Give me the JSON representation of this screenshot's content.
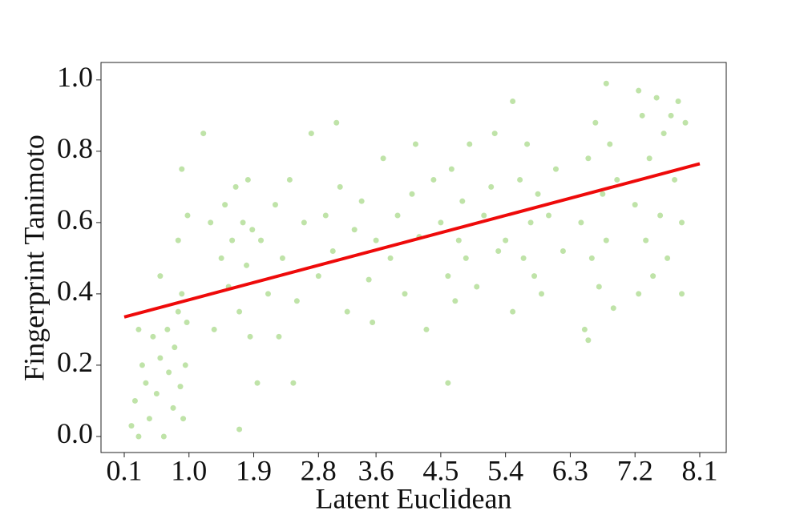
{
  "chart_data": {
    "type": "scatter",
    "x_label": "Latent Euclidean",
    "y_label": "Fingerprint Tanimoto",
    "xlim": [
      -0.223,
      8.468
    ],
    "ylim": [
      -0.045,
      1.049
    ],
    "xticks": [
      0.1,
      {
        "value": 1,
        "label": "1.0"
      },
      1.9,
      2.8,
      3.6,
      4.5,
      5.4,
      6.3,
      7.2,
      8.1
    ],
    "yticks": [
      {
        "value": 0,
        "label": "0.0"
      },
      0.2,
      0.4,
      0.6,
      0.8,
      {
        "value": 1,
        "label": "1.0"
      }
    ],
    "series": [
      {
        "color": "#a9d98b",
        "x": [
          0.2,
          0.25,
          0.3,
          0.35,
          0.4,
          0.45,
          0.5,
          0.55,
          0.6,
          0.65,
          0.7,
          0.72,
          0.78,
          0.8,
          0.85,
          0.88,
          0.9,
          0.92,
          0.95,
          0.97,
          0.6,
          0.85,
          0.9,
          0.3,
          0.98,
          1.2,
          1.3,
          1.35,
          1.45,
          1.5,
          1.55,
          1.6,
          1.65,
          1.7,
          1.75,
          1.8,
          1.82,
          1.85,
          1.88,
          1.7,
          1.95,
          2.0,
          2.1,
          2.2,
          2.3,
          2.4,
          2.5,
          2.6,
          2.7,
          2.8,
          2.9,
          3.0,
          3.1,
          3.2,
          3.3,
          3.4,
          3.5,
          3.6,
          3.7,
          3.8,
          3.9,
          4.0,
          4.1,
          4.2,
          4.3,
          4.4,
          2.45,
          3.05,
          2.25,
          3.55,
          4.15,
          4.5,
          4.6,
          4.65,
          4.7,
          4.75,
          4.8,
          4.85,
          4.9,
          5.0,
          5.1,
          5.2,
          5.3,
          4.6,
          5.25,
          5.4,
          5.5,
          5.6,
          5.65,
          5.7,
          5.75,
          5.8,
          5.85,
          5.9,
          6.0,
          6.1,
          6.2,
          5.5,
          6.45,
          6.5,
          6.55,
          6.6,
          6.65,
          6.7,
          6.75,
          6.8,
          6.85,
          6.9,
          6.95,
          6.8,
          6.55,
          7.2,
          7.25,
          7.3,
          7.35,
          7.4,
          7.45,
          7.5,
          7.55,
          7.6,
          7.65,
          7.7,
          7.75,
          7.8,
          7.85,
          7.9,
          7.85,
          7.25
        ],
        "values": [
          0.03,
          0.1,
          0.0,
          0.2,
          0.15,
          0.05,
          0.28,
          0.12,
          0.22,
          0.0,
          0.3,
          0.18,
          0.08,
          0.25,
          0.35,
          0.14,
          0.4,
          0.05,
          0.2,
          0.32,
          0.45,
          0.55,
          0.75,
          0.3,
          0.62,
          0.85,
          0.6,
          0.3,
          0.5,
          0.65,
          0.42,
          0.55,
          0.7,
          0.35,
          0.6,
          0.48,
          0.72,
          0.28,
          0.58,
          0.02,
          0.15,
          0.55,
          0.4,
          0.65,
          0.5,
          0.72,
          0.38,
          0.6,
          0.85,
          0.45,
          0.62,
          0.52,
          0.7,
          0.35,
          0.58,
          0.66,
          0.44,
          0.55,
          0.78,
          0.5,
          0.62,
          0.4,
          0.68,
          0.56,
          0.3,
          0.72,
          0.15,
          0.88,
          0.28,
          0.32,
          0.82,
          0.6,
          0.45,
          0.75,
          0.38,
          0.55,
          0.66,
          0.5,
          0.82,
          0.42,
          0.62,
          0.7,
          0.52,
          0.15,
          0.85,
          0.55,
          0.35,
          0.72,
          0.5,
          0.82,
          0.6,
          0.45,
          0.68,
          0.4,
          0.62,
          0.75,
          0.52,
          0.94,
          0.6,
          0.3,
          0.78,
          0.5,
          0.88,
          0.42,
          0.68,
          0.55,
          0.82,
          0.36,
          0.72,
          0.99,
          0.27,
          0.65,
          0.4,
          0.9,
          0.55,
          0.78,
          0.45,
          0.95,
          0.62,
          0.85,
          0.5,
          0.9,
          0.72,
          0.94,
          0.6,
          0.88,
          0.4,
          0.97
        ]
      },
      {
        "type": "line",
        "color": "#ee0a0a",
        "x": [
          0.1,
          8.1
        ],
        "values": [
          0.335,
          0.765
        ]
      }
    ]
  }
}
